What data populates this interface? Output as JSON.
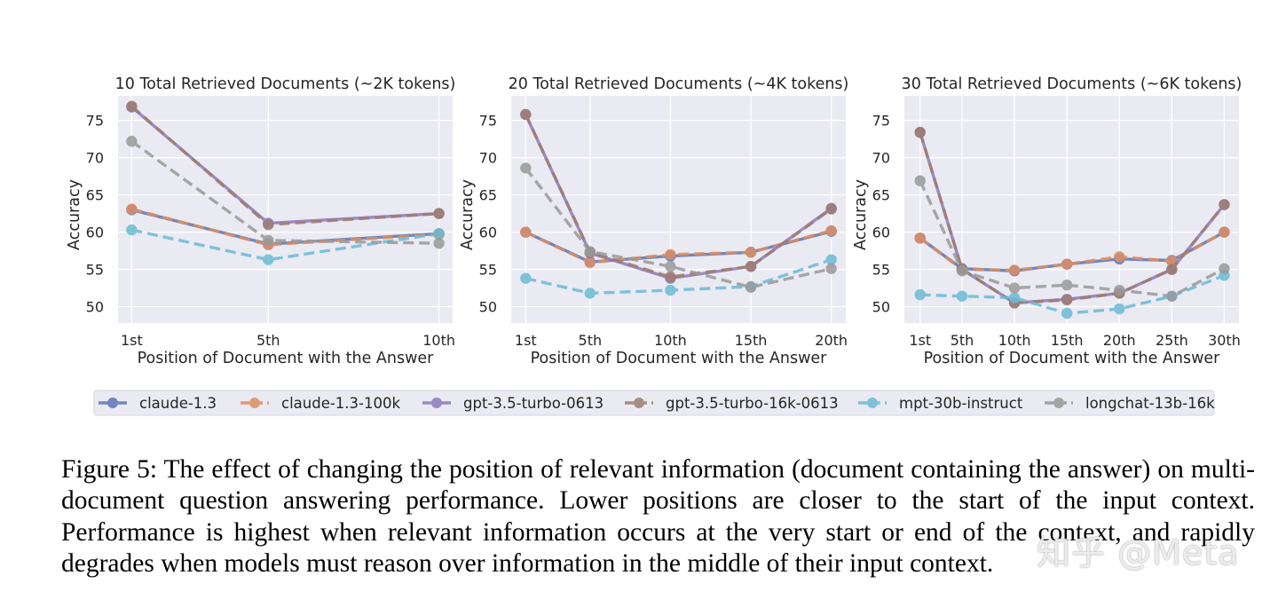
{
  "chart_data": [
    {
      "type": "line",
      "title": "10 Total Retrieved Documents (~2K tokens)",
      "xlabel": "Position of Document with the Answer",
      "ylabel": "Accuracy",
      "categories": [
        "1st",
        "5th",
        "10th"
      ],
      "x": [
        1,
        5,
        10
      ],
      "xlim": [
        0.6,
        10.4
      ],
      "ylim": [
        47.8,
        78.3
      ],
      "yticks": [
        50,
        55,
        60,
        65,
        70,
        75
      ],
      "grid": true,
      "series": [
        {
          "name": "claude-1.3",
          "values": [
            63.0,
            58.4,
            59.8
          ]
        },
        {
          "name": "claude-1.3-100k",
          "values": [
            63.1,
            58.3,
            59.7
          ]
        },
        {
          "name": "gpt-3.5-turbo-0613",
          "values": [
            76.8,
            61.2,
            62.5
          ]
        },
        {
          "name": "gpt-3.5-turbo-16k-0613",
          "values": [
            76.9,
            61.0,
            62.5
          ]
        },
        {
          "name": "mpt-30b-instruct",
          "values": [
            60.3,
            56.3,
            59.8
          ]
        },
        {
          "name": "longchat-13b-16k",
          "values": [
            72.2,
            58.9,
            58.5
          ]
        }
      ]
    },
    {
      "type": "line",
      "title": "20 Total Retrieved Documents (~4K tokens)",
      "xlabel": "Position of Document with the Answer",
      "ylabel": "Accuracy",
      "categories": [
        "1st",
        "5th",
        "10th",
        "15th",
        "20th"
      ],
      "x": [
        1,
        5,
        10,
        15,
        20
      ],
      "xlim": [
        0.1,
        20.9
      ],
      "ylim": [
        47.8,
        78.3
      ],
      "yticks": [
        50,
        55,
        60,
        65,
        70,
        75
      ],
      "grid": true,
      "series": [
        {
          "name": "claude-1.3",
          "values": [
            60.0,
            56.0,
            56.8,
            57.3,
            60.1
          ]
        },
        {
          "name": "claude-1.3-100k",
          "values": [
            60.0,
            55.9,
            57.0,
            57.3,
            60.2
          ]
        },
        {
          "name": "gpt-3.5-turbo-0613",
          "values": [
            75.8,
            57.2,
            53.8,
            55.4,
            63.2
          ]
        },
        {
          "name": "gpt-3.5-turbo-16k-0613",
          "values": [
            75.8,
            57.3,
            54.0,
            55.4,
            63.1
          ]
        },
        {
          "name": "mpt-30b-instruct",
          "values": [
            53.8,
            51.8,
            52.2,
            52.7,
            56.3
          ]
        },
        {
          "name": "longchat-13b-16k",
          "values": [
            68.6,
            57.4,
            55.4,
            52.6,
            55.1
          ]
        }
      ]
    },
    {
      "type": "line",
      "title": "30 Total Retrieved Documents (~6K tokens)",
      "xlabel": "Position of Document with the Answer",
      "ylabel": "Accuracy",
      "categories": [
        "1st",
        "5th",
        "10th",
        "15th",
        "20th",
        "25th",
        "30th"
      ],
      "x": [
        1,
        5,
        10,
        15,
        20,
        25,
        30
      ],
      "xlim": [
        -0.5,
        31.4
      ],
      "ylim": [
        47.8,
        78.3
      ],
      "yticks": [
        50,
        55,
        60,
        65,
        70,
        75
      ],
      "grid": true,
      "series": [
        {
          "name": "claude-1.3",
          "values": [
            59.2,
            55.1,
            54.8,
            55.7,
            56.4,
            56.2,
            60.0
          ]
        },
        {
          "name": "claude-1.3-100k",
          "values": [
            59.2,
            55.0,
            54.9,
            55.7,
            56.7,
            56.1,
            60.0
          ]
        },
        {
          "name": "gpt-3.5-turbo-0613",
          "values": [
            73.4,
            55.0,
            50.5,
            51.0,
            51.8,
            55.0,
            63.7
          ]
        },
        {
          "name": "gpt-3.5-turbo-16k-0613",
          "values": [
            73.4,
            55.0,
            50.5,
            50.9,
            51.8,
            55.0,
            63.7
          ]
        },
        {
          "name": "mpt-30b-instruct",
          "values": [
            51.6,
            51.4,
            51.2,
            49.1,
            49.7,
            51.4,
            54.2
          ]
        },
        {
          "name": "longchat-13b-16k",
          "values": [
            66.9,
            54.8,
            52.5,
            52.9,
            52.2,
            51.4,
            55.1
          ]
        }
      ]
    }
  ],
  "legend": {
    "placement": "bottom",
    "items": [
      {
        "name": "claude-1.3",
        "color": "#5a76b3",
        "dashed": false
      },
      {
        "name": "claude-1.3-100k",
        "color": "#df8d63",
        "dashed": true
      },
      {
        "name": "gpt-3.5-turbo-0613",
        "color": "#8b79be",
        "dashed": false
      },
      {
        "name": "gpt-3.5-turbo-16k-0613",
        "color": "#9e7d6f",
        "dashed": true
      },
      {
        "name": "mpt-30b-instruct",
        "color": "#6bbbd5",
        "dashed": true
      },
      {
        "name": "longchat-13b-16k",
        "color": "#9a9a9a",
        "dashed": true
      }
    ]
  },
  "colors": {
    "plot_background": "#eaeaf2",
    "grid": "#ffffff",
    "text": "#262626"
  },
  "caption": "Figure 5: The effect of changing the position of relevant information (document containing the answer) on multi-document question answering performance. Lower positions are closer to the start of the input context. Performance is highest when relevant information occurs at the very start or end of the context, and rapidly degrades when models must reason over information in the middle of their input context.",
  "watermark": "知乎 @Meta"
}
